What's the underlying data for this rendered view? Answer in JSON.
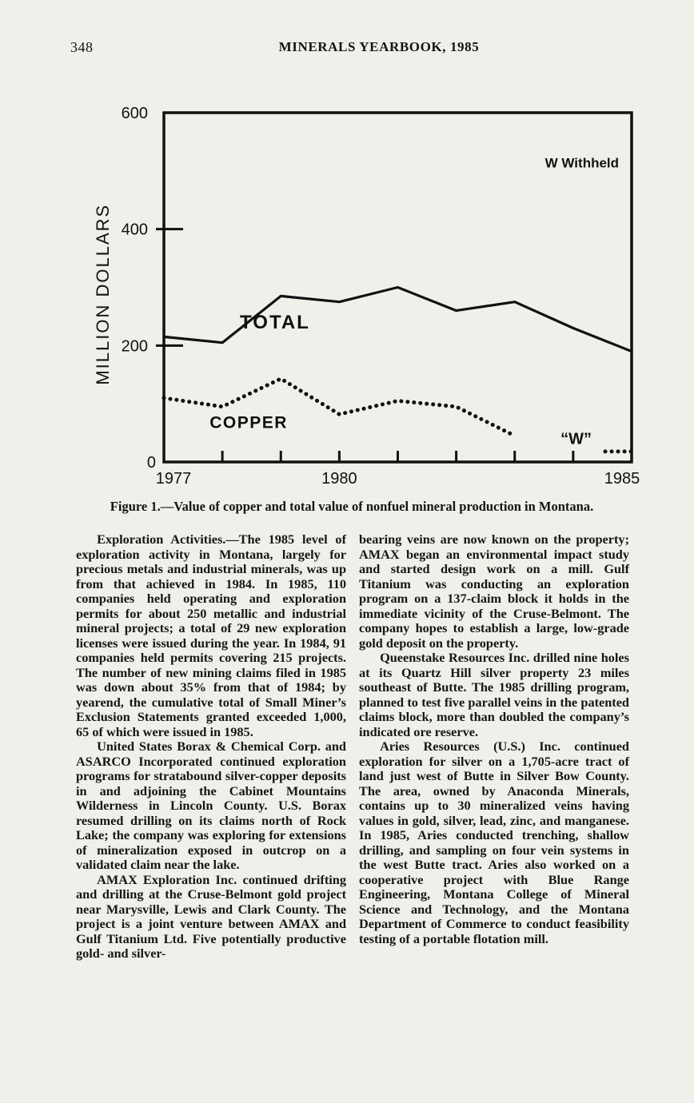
{
  "page": {
    "number": "348",
    "header_title": "MINERALS YEARBOOK, 1985"
  },
  "chart_data": {
    "type": "line",
    "title": "Figure 1.—Value of copper and total value of nonfuel mineral production in Montana.",
    "xlabel": "",
    "ylabel": "MILLION DOLLARS",
    "xlim": [
      1977,
      1985
    ],
    "ylim": [
      0,
      600
    ],
    "yticks": [
      0,
      200,
      400,
      600
    ],
    "x": [
      1977,
      1978,
      1979,
      1980,
      1981,
      1982,
      1983,
      1984,
      1985
    ],
    "xtick_labels": [
      {
        "label": "1977",
        "year": 1977,
        "align": "start"
      },
      {
        "label": "1980",
        "year": 1980,
        "align": "middle"
      },
      {
        "label": "1985",
        "year": 1985,
        "align": "end"
      }
    ],
    "grid": false,
    "series": [
      {
        "name": "TOTAL",
        "style": "solid",
        "values": [
          215,
          205,
          285,
          275,
          300,
          260,
          275,
          230,
          190
        ]
      },
      {
        "name": "COPPER",
        "style": "dotted",
        "values": [
          110,
          95,
          143,
          82,
          105,
          95,
          45,
          null,
          18
        ],
        "note": "1984 value withheld (W); 1985 shown as short dotted segment"
      }
    ],
    "annotations": [
      {
        "role": "legend-note",
        "text": "W Withheld",
        "x": 1984.15,
        "y": 512
      },
      {
        "role": "series-label-total",
        "text": "TOTAL",
        "x": 1978.9,
        "y": 238
      },
      {
        "role": "series-label-copper",
        "text": "COPPER",
        "x": 1978.45,
        "y": 66
      },
      {
        "role": "withheld-marker",
        "text": "“W”",
        "x": 1984.05,
        "y": 38
      }
    ]
  },
  "article": {
    "left": {
      "p1_lead": "Exploration Activities.—",
      "p1_rest": "The 1985 level of exploration activity in Montana, largely for precious metals and industrial minerals, was up from that achieved in 1984. In 1985, 110 companies held operating and exploration permits for about 250 metallic and industrial mineral projects; a total of 29 new exploration licenses were issued during the year. In 1984, 91 companies held permits covering 215 projects. The number of new mining claims filed in 1985 was down about 35% from that of 1984; by yearend, the cumulative total of Small Miner’s Exclusion Statements granted exceeded 1,000, 65 of which were issued in 1985.",
      "p2": "United States Borax & Chemical Corp. and ASARCO Incorporated continued exploration programs for stratabound silver-copper deposits in and adjoining the Cabinet Mountains Wilderness in Lincoln County. U.S. Borax resumed drilling on its claims north of Rock Lake; the company was exploring for extensions of mineralization exposed in outcrop on a validated claim near the lake.",
      "p3": "AMAX Exploration Inc. continued drifting and drilling at the Cruse-Belmont gold project near Marysville, Lewis and Clark County. The project is a joint venture between AMAX and Gulf Titanium Ltd. Five potentially productive gold- and silver-"
    },
    "right": {
      "p1": "bearing veins are now known on the property; AMAX began an environmental impact study and started design work on a mill. Gulf Titanium was conducting an exploration program on a 137-claim block it holds in the immediate vicinity of the Cruse-Belmont. The company hopes to establish a large, low-grade gold deposit on the property.",
      "p2": "Queenstake Resources Inc. drilled nine holes at its Quartz Hill silver property 23 miles southeast of Butte. The 1985 drilling program, planned to test five parallel veins in the patented claims block, more than doubled the company’s indicated ore reserve.",
      "p3": "Aries Resources (U.S.) Inc. continued exploration for silver on a 1,705-acre tract of land just west of Butte in Silver Bow County. The area, owned by Anaconda Minerals, contains up to 30 mineralized veins having values in gold, silver, lead, zinc, and manganese. In 1985, Aries conducted trenching, shallow drilling, and sampling on four vein systems in the west Butte tract. Aries also worked on a cooperative project with Blue Range Engineering, Montana College of Mineral Science and Technology, and the Montana Department of Commerce to conduct feasibility testing of a portable flotation mill."
    }
  }
}
